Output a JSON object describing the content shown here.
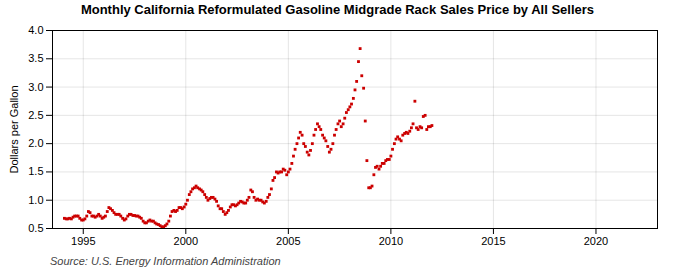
{
  "chart_data": {
    "type": "scatter",
    "title": "Monthly California Reformulated Gasoline Midgrade Rack Sales Price by All Sellers",
    "ylabel": "Dollars per Gallon",
    "annotations": [
      "Source: U.S. Energy Information Administration"
    ],
    "color": "#cc0000",
    "marker": "square",
    "grid": true,
    "xlim": [
      1993.5,
      2023.0
    ],
    "ylim": [
      0.5,
      4.0
    ],
    "xticks": [
      1995,
      2000,
      2005,
      2010,
      2015,
      2020
    ],
    "yticks": [
      0.5,
      {
        "value": 1.0,
        "label": "1.0"
      },
      1.5,
      {
        "value": 2.0,
        "label": "2.0"
      },
      2.5,
      {
        "value": 3.0,
        "label": "3.0"
      },
      3.5,
      {
        "value": 4.0,
        "label": "4.0"
      }
    ],
    "x": [
      1994.08,
      1994.17,
      1994.25,
      1994.33,
      1994.42,
      1994.5,
      1994.58,
      1994.67,
      1994.75,
      1994.83,
      1994.92,
      1995.0,
      1995.08,
      1995.17,
      1995.25,
      1995.33,
      1995.42,
      1995.5,
      1995.58,
      1995.67,
      1995.75,
      1995.83,
      1995.92,
      1996.0,
      1996.08,
      1996.17,
      1996.25,
      1996.33,
      1996.42,
      1996.5,
      1996.58,
      1996.67,
      1996.75,
      1996.83,
      1996.92,
      1997.0,
      1997.08,
      1997.17,
      1997.25,
      1997.33,
      1997.42,
      1997.5,
      1997.58,
      1997.67,
      1997.75,
      1997.83,
      1997.92,
      1998.0,
      1998.08,
      1998.17,
      1998.25,
      1998.33,
      1998.42,
      1998.5,
      1998.58,
      1998.67,
      1998.75,
      1998.83,
      1998.92,
      1999.0,
      1999.08,
      1999.17,
      1999.25,
      1999.33,
      1999.42,
      1999.5,
      1999.58,
      1999.67,
      1999.75,
      1999.83,
      1999.92,
      2000.0,
      2000.08,
      2000.17,
      2000.25,
      2000.33,
      2000.42,
      2000.5,
      2000.58,
      2000.67,
      2000.75,
      2000.83,
      2000.92,
      2001.0,
      2001.08,
      2001.17,
      2001.25,
      2001.33,
      2001.42,
      2001.5,
      2001.58,
      2001.67,
      2001.75,
      2001.83,
      2001.92,
      2002.0,
      2002.08,
      2002.17,
      2002.25,
      2002.33,
      2002.42,
      2002.5,
      2002.58,
      2002.67,
      2002.75,
      2002.83,
      2002.92,
      2003.0,
      2003.08,
      2003.17,
      2003.25,
      2003.33,
      2003.42,
      2003.5,
      2003.58,
      2003.67,
      2003.75,
      2003.83,
      2003.92,
      2004.0,
      2004.08,
      2004.17,
      2004.25,
      2004.33,
      2004.42,
      2004.5,
      2004.58,
      2004.67,
      2004.75,
      2004.83,
      2004.92,
      2005.0,
      2005.08,
      2005.17,
      2005.25,
      2005.33,
      2005.42,
      2005.5,
      2005.58,
      2005.67,
      2005.75,
      2005.83,
      2005.92,
      2006.0,
      2006.08,
      2006.17,
      2006.25,
      2006.33,
      2006.42,
      2006.5,
      2006.58,
      2006.67,
      2006.75,
      2006.83,
      2006.92,
      2007.0,
      2007.08,
      2007.17,
      2007.25,
      2007.33,
      2007.42,
      2007.5,
      2007.58,
      2007.67,
      2007.75,
      2007.83,
      2007.92,
      2008.0,
      2008.08,
      2008.17,
      2008.25,
      2008.33,
      2008.42,
      2008.5,
      2008.58,
      2008.67,
      2008.75,
      2008.83,
      2008.92,
      2009.0,
      2009.08,
      2009.17,
      2009.25,
      2009.33,
      2009.42,
      2009.5,
      2009.58,
      2009.67,
      2009.75,
      2009.83,
      2009.92,
      2010.0,
      2010.08,
      2010.17,
      2010.25,
      2010.33,
      2010.42,
      2010.5,
      2010.58,
      2010.67,
      2010.75,
      2010.83,
      2010.92,
      2011.0,
      2011.08,
      2011.17,
      2011.25,
      2011.33,
      2011.42,
      2011.5,
      2011.58,
      2011.67,
      2011.75,
      2011.83,
      2011.92,
      2012.0
    ],
    "values": [
      0.68,
      0.67,
      0.67,
      0.68,
      0.67,
      0.7,
      0.72,
      0.72,
      0.72,
      0.68,
      0.65,
      0.65,
      0.67,
      0.72,
      0.8,
      0.78,
      0.72,
      0.72,
      0.7,
      0.72,
      0.75,
      0.72,
      0.68,
      0.7,
      0.72,
      0.8,
      0.87,
      0.85,
      0.82,
      0.78,
      0.75,
      0.75,
      0.75,
      0.72,
      0.68,
      0.65,
      0.67,
      0.72,
      0.75,
      0.75,
      0.73,
      0.73,
      0.72,
      0.72,
      0.7,
      0.68,
      0.63,
      0.6,
      0.6,
      0.63,
      0.65,
      0.63,
      0.63,
      0.6,
      0.58,
      0.57,
      0.55,
      0.53,
      0.53,
      0.55,
      0.58,
      0.63,
      0.72,
      0.8,
      0.82,
      0.8,
      0.82,
      0.87,
      0.87,
      0.85,
      0.88,
      0.93,
      1.0,
      1.1,
      1.15,
      1.2,
      1.22,
      1.25,
      1.22,
      1.2,
      1.18,
      1.15,
      1.1,
      1.05,
      1.0,
      1.03,
      1.05,
      1.05,
      1.02,
      0.98,
      0.9,
      0.85,
      0.85,
      0.8,
      0.75,
      0.78,
      0.82,
      0.88,
      0.92,
      0.92,
      0.9,
      0.92,
      0.95,
      0.98,
      0.97,
      0.95,
      0.95,
      1.0,
      1.05,
      1.18,
      1.15,
      1.05,
      1.0,
      1.02,
      1.0,
      1.0,
      0.97,
      0.95,
      0.98,
      1.05,
      1.1,
      1.2,
      1.35,
      1.4,
      1.5,
      1.48,
      1.5,
      1.5,
      1.55,
      1.53,
      1.45,
      1.5,
      1.55,
      1.65,
      1.78,
      1.9,
      2.0,
      2.1,
      2.2,
      2.15,
      2.0,
      1.95,
      1.85,
      1.8,
      1.88,
      2.0,
      2.15,
      2.25,
      2.35,
      2.3,
      2.25,
      2.15,
      2.1,
      2.05,
      1.95,
      1.85,
      1.9,
      2.0,
      2.15,
      2.25,
      2.35,
      2.4,
      2.3,
      2.35,
      2.45,
      2.55,
      2.6,
      2.65,
      2.7,
      2.8,
      2.95,
      3.1,
      3.45,
      3.68,
      3.2,
      2.98,
      2.4,
      1.7,
      1.22,
      1.22,
      1.25,
      1.45,
      1.58,
      1.6,
      1.55,
      1.6,
      1.65,
      1.65,
      1.7,
      1.72,
      1.72,
      1.78,
      1.9,
      2.0,
      2.08,
      2.12,
      2.08,
      2.05,
      2.15,
      2.18,
      2.2,
      2.18,
      2.22,
      2.28,
      2.35,
      2.75,
      2.28,
      2.25,
      2.3,
      2.28,
      2.48,
      2.5,
      2.25,
      2.3,
      2.3,
      2.32
    ]
  }
}
